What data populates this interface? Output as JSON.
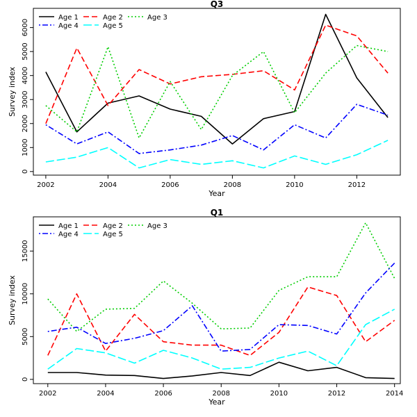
{
  "chart_data": [
    {
      "type": "line",
      "title": "Q3",
      "xlabel": "Year",
      "ylabel": "Survey index",
      "xlim": [
        2001.6,
        2013.4
      ],
      "ylim": [
        -150,
        6800
      ],
      "xticks": [
        2002,
        2004,
        2006,
        2008,
        2010,
        2012
      ],
      "yticks": [
        0,
        1000,
        2000,
        3000,
        4000,
        5000,
        6000
      ],
      "grid": false,
      "legend": "top-left",
      "x": [
        2002,
        2003,
        2004,
        2005,
        2006,
        2007,
        2008,
        2009,
        2010,
        2011,
        2012,
        2013
      ],
      "series": [
        {
          "name": "Age 1",
          "color": "#000000",
          "dash": "solid",
          "values": [
            4150,
            1650,
            2850,
            3150,
            2600,
            2300,
            1150,
            2200,
            2500,
            6550,
            3900,
            2250
          ]
        },
        {
          "name": "Age 2",
          "color": "#ff0000",
          "dash": "dashed",
          "values": [
            2000,
            5150,
            2750,
            4250,
            3650,
            3950,
            4050,
            4200,
            3400,
            6100,
            5650,
            4100
          ]
        },
        {
          "name": "Age 3",
          "color": "#00cd00",
          "dash": "dotted",
          "values": [
            2750,
            1650,
            5200,
            1400,
            3750,
            1750,
            4000,
            5000,
            2450,
            4100,
            5250,
            5000
          ]
        },
        {
          "name": "Age 4",
          "color": "#0000ff",
          "dash": "dotdash",
          "values": [
            1950,
            1150,
            1650,
            750,
            900,
            1100,
            1500,
            900,
            1950,
            1400,
            2800,
            2350
          ]
        },
        {
          "name": "Age 5",
          "color": "#00ffff",
          "dash": "longdash",
          "values": [
            400,
            600,
            1000,
            150,
            500,
            300,
            450,
            150,
            650,
            300,
            700,
            1300
          ]
        }
      ]
    },
    {
      "type": "line",
      "title": "Q1",
      "xlabel": "Year",
      "ylabel": "Survey index",
      "xlim": [
        2001.5,
        2014.2
      ],
      "ylim": [
        -500,
        19000
      ],
      "xticks": [
        2002,
        2004,
        2006,
        2008,
        2010,
        2012,
        2014
      ],
      "yticks": [
        0,
        5000,
        10000,
        15000
      ],
      "grid": false,
      "legend": "top-left",
      "x": [
        2002,
        2003,
        2004,
        2005,
        2006,
        2007,
        2008,
        2009,
        2010,
        2011,
        2012,
        2013,
        2014
      ],
      "series": [
        {
          "name": "Age 1",
          "color": "#000000",
          "dash": "solid",
          "values": [
            800,
            800,
            500,
            450,
            100,
            400,
            800,
            450,
            2000,
            1000,
            1400,
            200,
            100
          ]
        },
        {
          "name": "Age 2",
          "color": "#ff0000",
          "dash": "dashed",
          "values": [
            2800,
            10000,
            3300,
            7600,
            4400,
            4000,
            4000,
            2800,
            5500,
            10800,
            9800,
            4400,
            6900
          ]
        },
        {
          "name": "Age 3",
          "color": "#00cd00",
          "dash": "dotted",
          "values": [
            9400,
            5600,
            8200,
            8300,
            11500,
            8900,
            5900,
            6000,
            10400,
            12000,
            12000,
            18300,
            11800
          ]
        },
        {
          "name": "Age 4",
          "color": "#0000ff",
          "dash": "dotdash",
          "values": [
            5600,
            6100,
            4200,
            4800,
            5700,
            8600,
            3300,
            3500,
            6400,
            6300,
            5300,
            10100,
            13600
          ]
        },
        {
          "name": "Age 5",
          "color": "#00ffff",
          "dash": "longdash",
          "values": [
            1200,
            3600,
            3100,
            1900,
            3400,
            2500,
            1200,
            1400,
            2500,
            3300,
            1600,
            6400,
            8200
          ]
        }
      ]
    }
  ]
}
